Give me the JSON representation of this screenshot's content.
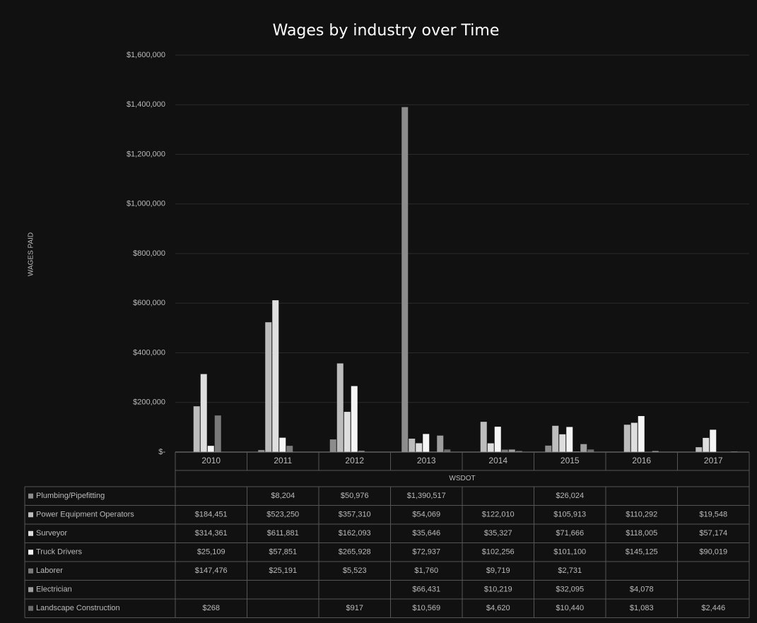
{
  "chart_data": {
    "type": "bar",
    "title": "Wages by industry over Time",
    "y_label": "WAGES PAID",
    "x_label": "WSDOT",
    "categories": [
      "2010",
      "2011",
      "2012",
      "2013",
      "2014",
      "2015",
      "2016",
      "2017"
    ],
    "ylim": [
      0,
      1600000
    ],
    "yticks": [
      {
        "value": 0,
        "label": "$-"
      },
      {
        "value": 200000,
        "label": "$200,000"
      },
      {
        "value": 400000,
        "label": "$400,000"
      },
      {
        "value": 600000,
        "label": "$600,000"
      },
      {
        "value": 800000,
        "label": "$800,000"
      },
      {
        "value": 1000000,
        "label": "$1,000,000"
      },
      {
        "value": 1200000,
        "label": "$1,200,000"
      },
      {
        "value": 1400000,
        "label": "$1,400,000"
      },
      {
        "value": 1600000,
        "label": "$1,600,000"
      }
    ],
    "series": [
      {
        "name": "Plumbing/Pipefitting",
        "color": "#8c8c8c",
        "values": [
          null,
          8204,
          50976,
          1390517,
          null,
          26024,
          null,
          null
        ],
        "value_labels": [
          null,
          "$8,204",
          "$50,976",
          "$1,390,517",
          null,
          "$26,024",
          null,
          null
        ]
      },
      {
        "name": "Power Equipment Operators",
        "color": "#bdbdbd",
        "values": [
          184451,
          523250,
          357310,
          54069,
          122010,
          105913,
          110292,
          19548
        ],
        "value_labels": [
          "$184,451",
          "$523,250",
          "$357,310",
          "$54,069",
          "$122,010",
          "$105,913",
          "$110,292",
          "$19,548"
        ]
      },
      {
        "name": "Surveyor",
        "color": "#dedede",
        "values": [
          314361,
          611881,
          162093,
          35646,
          35327,
          71666,
          118005,
          57174
        ],
        "value_labels": [
          "$314,361",
          "$611,881",
          "$162,093",
          "$35,646",
          "$35,327",
          "$71,666",
          "$118,005",
          "$57,174"
        ]
      },
      {
        "name": "Truck Drivers",
        "color": "#f5f5f5",
        "values": [
          25109,
          57851,
          265928,
          72937,
          102256,
          101100,
          145125,
          90019
        ],
        "value_labels": [
          "$25,109",
          "$57,851",
          "$265,928",
          "$72,937",
          "$102,256",
          "$101,100",
          "$145,125",
          "$90,019"
        ]
      },
      {
        "name": "Laborer",
        "color": "#7a7a7a",
        "values": [
          147476,
          25191,
          5523,
          1760,
          9719,
          2731,
          null,
          null
        ],
        "value_labels": [
          "$147,476",
          "$25,191",
          "$5,523",
          "$1,760",
          "$9,719",
          "$2,731",
          null,
          null
        ]
      },
      {
        "name": "Electrician",
        "color": "#9e9e9e",
        "values": [
          null,
          null,
          null,
          66431,
          10219,
          32095,
          4078,
          null
        ],
        "value_labels": [
          null,
          null,
          null,
          "$66,431",
          "$10,219",
          "$32,095",
          "$4,078",
          null
        ]
      },
      {
        "name": "Landscape Construction",
        "color": "#6a6a6a",
        "values": [
          268,
          null,
          917,
          10569,
          4620,
          10440,
          1083,
          2446
        ],
        "value_labels": [
          "$268",
          null,
          "$917",
          "$10,569",
          "$4,620",
          "$10,440",
          "$1,083",
          "$2,446"
        ]
      }
    ]
  }
}
